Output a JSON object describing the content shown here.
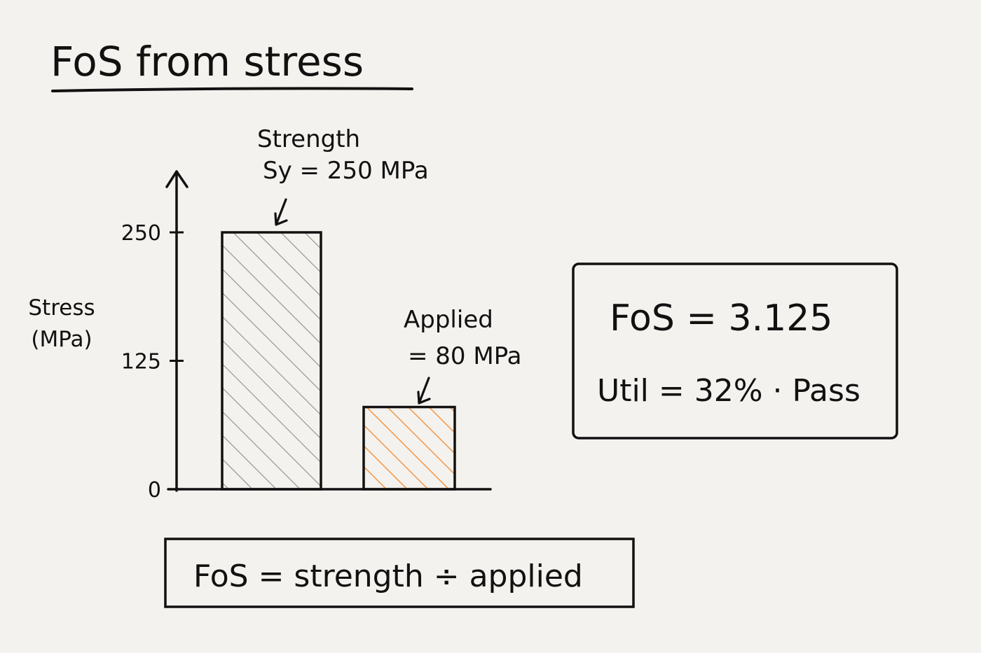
{
  "title": "FoS from stress",
  "colors": {
    "ink": "#111111",
    "paper": "#f4f2ee",
    "strength_hatch": "#8d8d8d",
    "applied_hatch": "#f08a2c"
  },
  "chart_data": {
    "type": "bar",
    "title": "FoS from stress",
    "ylabel": [
      "Stress",
      "(MPa)"
    ],
    "yticks": [
      0,
      125,
      250
    ],
    "ylim": [
      0,
      250
    ],
    "categories": [
      "Strength",
      "Applied"
    ],
    "values": [
      250,
      80
    ],
    "annotations": [
      {
        "lines": [
          "Strength",
          "Sy = 250 MPa"
        ]
      },
      {
        "lines": [
          "Applied",
          "= 80 MPa"
        ]
      }
    ]
  },
  "result": {
    "fos": "FoS = 3.125",
    "util": "Util = 32% · Pass"
  },
  "formula": "FoS = strength ÷ applied"
}
